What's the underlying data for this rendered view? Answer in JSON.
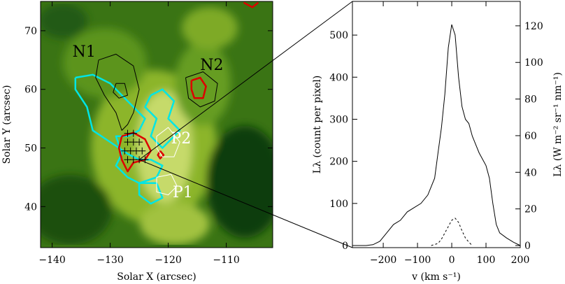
{
  "chart_data": [
    {
      "type": "heatmap",
      "xlabel": "Solar X (arcsec)",
      "ylabel": "Solar Y (arcsec)",
      "xlim": [
        -142,
        -102
      ],
      "ylim": [
        33,
        75
      ],
      "xticks": [
        -140,
        -130,
        -120,
        -110
      ],
      "yticks": [
        40,
        50,
        60,
        70
      ],
      "colormap": [
        "#0b3a0b",
        "#2f6e12",
        "#6e9e1c",
        "#b7cf4a",
        "#e9f0b4"
      ],
      "regions": [
        {
          "label": "N1",
          "x": -134.5,
          "y": 65.6,
          "color": "#000000"
        },
        {
          "label": "N2",
          "x": -112.5,
          "y": 63.3,
          "color": "#000000"
        },
        {
          "label": "P2",
          "x": -117.8,
          "y": 50.8,
          "color": "#ffffff"
        },
        {
          "label": "P1",
          "x": -117.5,
          "y": 41.6,
          "color": "#ffffff"
        }
      ],
      "contours": [
        {
          "name": "",
          "color": "#00e5e5",
          "points": [
            [
              -136,
              62
            ],
            [
              -133,
              62.5
            ],
            [
              -130,
              61
            ],
            [
              -128,
              59
            ],
            [
              -126,
              57
            ],
            [
              -124,
              55
            ],
            [
              -125,
              53
            ],
            [
              -127,
              52
            ],
            [
              -129,
              52
            ],
            [
              -128,
              49
            ],
            [
              -129,
              47
            ],
            [
              -127,
              45
            ],
            [
              -125,
              44
            ],
            [
              -122,
              45
            ],
            [
              -121,
              47
            ],
            [
              -123,
              48
            ],
            [
              -125,
              48
            ],
            [
              -127,
              49
            ],
            [
              -130,
              51
            ],
            [
              -133,
              53
            ],
            [
              -134,
              57
            ],
            [
              -136,
              60
            ],
            [
              -136,
              62
            ]
          ]
        },
        {
          "name": "",
          "color": "#00e5e5",
          "points": [
            [
              -123,
              59
            ],
            [
              -121,
              60
            ],
            [
              -119,
              58
            ],
            [
              -120,
              55
            ],
            [
              -118,
              53
            ],
            [
              -121,
              50
            ],
            [
              -123,
              52
            ],
            [
              -122,
              55
            ],
            [
              -124,
              57
            ],
            [
              -123,
              59
            ]
          ]
        },
        {
          "name": "",
          "color": "#00e5e5",
          "points": [
            [
              -125,
              44
            ],
            [
              -122,
              44
            ],
            [
              -121,
              41.5
            ],
            [
              -123,
              40.5
            ],
            [
              -125,
              42
            ],
            [
              -125,
              44
            ]
          ]
        },
        {
          "name": "",
          "color": "#dd0000",
          "points": [
            [
              -128,
              52
            ],
            [
              -126,
              52.6
            ],
            [
              -124,
              51.5
            ],
            [
              -123,
              49.5
            ],
            [
              -124,
              48
            ],
            [
              -126,
              47.5
            ],
            [
              -127,
              46
            ],
            [
              -128,
              48
            ],
            [
              -128.5,
              50
            ],
            [
              -128,
              52
            ]
          ]
        },
        {
          "name": "",
          "color": "#dd0000",
          "points": [
            [
              -116,
              61.5
            ],
            [
              -114.5,
              62
            ],
            [
              -113.5,
              60.5
            ],
            [
              -114,
              58.5
            ],
            [
              -115.5,
              58.5
            ],
            [
              -116,
              60
            ],
            [
              -116,
              61.5
            ]
          ]
        },
        {
          "name": "",
          "color": "#dd0000",
          "points": [
            [
              -121.4,
              49.5
            ],
            [
              -120.8,
              48.8
            ],
            [
              -121.4,
              48.2
            ],
            [
              -121.8,
              48.8
            ],
            [
              -121.4,
              49.5
            ]
          ]
        },
        {
          "name": "",
          "color": "#dd0000",
          "points": [
            [
              -107,
              74.8
            ],
            [
              -105.5,
              74
            ],
            [
              -104.5,
              74.8
            ]
          ]
        },
        {
          "name": "",
          "color": "#000000",
          "points": [
            [
              -132,
              65
            ],
            [
              -129,
              66
            ],
            [
              -126,
              64
            ],
            [
              -125,
              60
            ],
            [
              -126,
              56
            ],
            [
              -127,
              54
            ],
            [
              -128,
              53
            ],
            [
              -129,
              56
            ],
            [
              -131,
              59
            ],
            [
              -132.5,
              62
            ],
            [
              -132,
              65
            ]
          ]
        },
        {
          "name": "",
          "color": "#000000",
          "points": [
            [
              -129,
              61
            ],
            [
              -127.5,
              61
            ],
            [
              -127,
              59
            ],
            [
              -128.5,
              58.5
            ],
            [
              -129.5,
              59.5
            ],
            [
              -129,
              61
            ]
          ]
        },
        {
          "name": "",
          "color": "#000000",
          "points": [
            [
              -117,
              62
            ],
            [
              -114,
              63
            ],
            [
              -111.5,
              61
            ],
            [
              -112,
              58
            ],
            [
              -114.5,
              57
            ],
            [
              -116.5,
              58.5
            ],
            [
              -117,
              62
            ]
          ]
        },
        {
          "name": "",
          "color": "#ffffff",
          "points": [
            [
              -122,
              52
            ],
            [
              -120,
              53.5
            ],
            [
              -118,
              51
            ],
            [
              -119,
              48.5
            ],
            [
              -121,
              48.5
            ],
            [
              -122,
              50
            ],
            [
              -122,
              52
            ]
          ]
        },
        {
          "name": "",
          "color": "#ffffff",
          "points": [
            [
              -122,
              45
            ],
            [
              -119.5,
              45.5
            ],
            [
              -118.5,
              43.5
            ],
            [
              -120,
              42
            ],
            [
              -122,
              42.5
            ],
            [
              -122,
              45
            ]
          ]
        }
      ],
      "crosses": [
        [
          -127,
          52.5
        ],
        [
          -126,
          52.5
        ],
        [
          -127,
          51
        ],
        [
          -126,
          51
        ],
        [
          -125,
          51
        ],
        [
          -127.5,
          49.5
        ],
        [
          -126.5,
          49.5
        ],
        [
          -125.5,
          49.5
        ],
        [
          -124.5,
          49.5
        ],
        [
          -127,
          48
        ],
        [
          -126,
          48
        ],
        [
          -125,
          48
        ],
        [
          -124,
          48
        ]
      ],
      "zoom_line_from": [
        -125,
        48
      ]
    },
    {
      "type": "line",
      "xlabel": "v (km s⁻¹)",
      "ylabel_left": "Lλ (count per pixel)",
      "ylabel_right": "Lλ (W m⁻² sr⁻¹ nm⁻¹)",
      "xlim": [
        -290,
        200
      ],
      "ylim": [
        -5,
        580
      ],
      "xticks": [
        -200,
        -100,
        0,
        100,
        200
      ],
      "yticks_left": [
        0,
        100,
        200,
        300,
        400,
        500
      ],
      "yticks_right": [
        0,
        20,
        40,
        60,
        80,
        100,
        120
      ],
      "series": [
        {
          "name": "",
          "style": "solid",
          "x": [
            -280,
            -250,
            -230,
            -210,
            -190,
            -170,
            -150,
            -130,
            -110,
            -90,
            -70,
            -50,
            -40,
            -30,
            -20,
            -10,
            0,
            10,
            20,
            30,
            40,
            50,
            60,
            70,
            80,
            90,
            100,
            110,
            120,
            130,
            140,
            160,
            180,
            200
          ],
          "y": [
            0,
            0,
            2,
            10,
            30,
            50,
            60,
            80,
            90,
            100,
            120,
            160,
            220,
            280,
            360,
            470,
            525,
            500,
            400,
            330,
            300,
            290,
            260,
            240,
            220,
            205,
            190,
            160,
            100,
            50,
            30,
            18,
            8,
            0
          ]
        },
        {
          "name": "",
          "style": "dashed",
          "x": [
            -60,
            -40,
            -30,
            -20,
            -10,
            0,
            10,
            20,
            30,
            40,
            50,
            60
          ],
          "y": [
            0,
            5,
            15,
            30,
            45,
            60,
            65,
            55,
            35,
            18,
            8,
            0
          ]
        }
      ]
    }
  ]
}
